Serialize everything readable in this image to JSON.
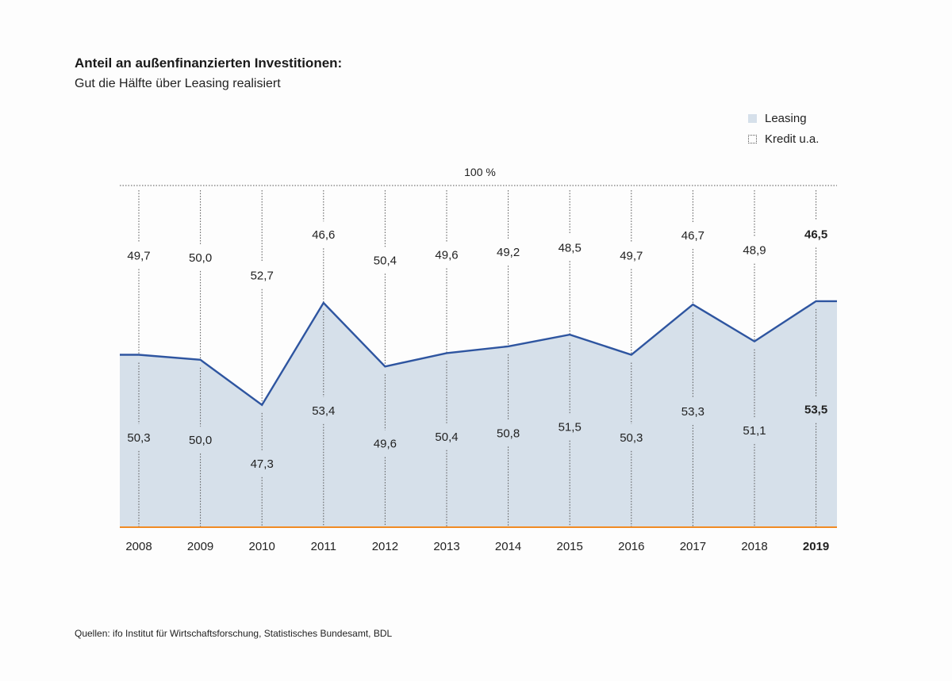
{
  "title": "Anteil an außenfinanzierten Investitionen:",
  "subtitle": "Gut die Hälfte über Leasing realisiert",
  "legend": {
    "leasing_label": "Leasing",
    "kredit_label": "Kredit u.a."
  },
  "source": "Quellen: ifo Institut für Wirtschaftsforschung, Statistisches Bundesamt, BDL",
  "colors": {
    "leasing_fill": "#d6e0ea",
    "line": "#2e55a0",
    "baseline": "#f08a24",
    "guides": "#555555"
  },
  "chart_data": {
    "type": "area",
    "title": "Anteil an außenfinanzierten Investitionen:",
    "subtitle": "Gut die Hälfte über Leasing realisiert",
    "top_label": "100 %",
    "categories": [
      "2008",
      "2009",
      "2010",
      "2011",
      "2012",
      "2013",
      "2014",
      "2015",
      "2016",
      "2017",
      "2018",
      "2019"
    ],
    "highlight_category": "2019",
    "series": [
      {
        "name": "Leasing",
        "values": [
          50.3,
          50.0,
          47.3,
          53.4,
          49.6,
          50.4,
          50.8,
          51.5,
          50.3,
          53.3,
          51.1,
          53.5
        ],
        "labels": [
          "50,3",
          "50,0",
          "47,3",
          "53,4",
          "49,6",
          "50,4",
          "50,8",
          "51,5",
          "50,3",
          "53,3",
          "51,1",
          "53,5"
        ]
      },
      {
        "name": "Kredit u.a.",
        "values": [
          49.7,
          50.0,
          52.7,
          46.6,
          50.4,
          49.6,
          49.2,
          48.5,
          49.7,
          46.7,
          48.9,
          46.5
        ],
        "labels": [
          "49,7",
          "50,0",
          "52,7",
          "46,6",
          "50,4",
          "49,6",
          "49,2",
          "48,5",
          "49,7",
          "46,7",
          "48,9",
          "46,5"
        ]
      }
    ],
    "ylim": [
      0,
      100
    ],
    "grid": false,
    "legend_position": "top-right"
  }
}
